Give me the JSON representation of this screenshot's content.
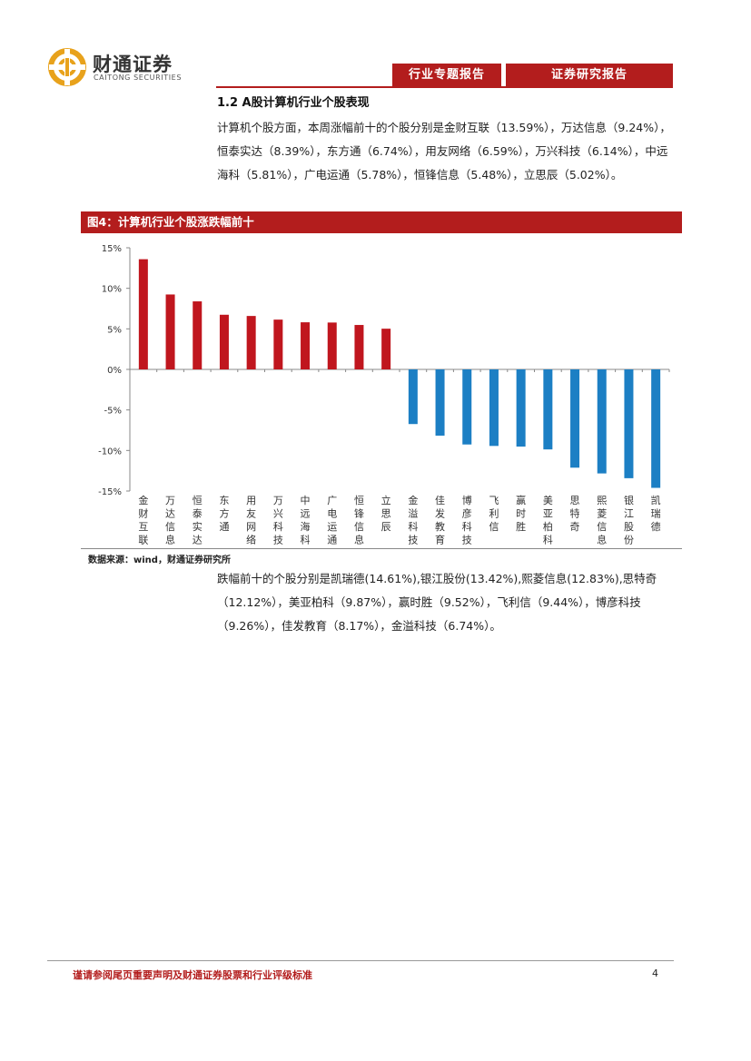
{
  "header": {
    "logo_cn": "财通证券",
    "logo_en": "CAITONG SECURITIES",
    "tab_industry": "行业专题报告",
    "tab_research": "证券研究报告",
    "brand_color": "#b31d1d"
  },
  "section": {
    "title": "1.2 A股计算机行业个股表现",
    "para1": "计算机个股方面，本周涨幅前十的个股分别是金财互联（13.59%），万达信息（9.24%），恒泰实达（8.39%），东方通（6.74%），用友网络（6.59%），万兴科技（6.14%），中远海科（5.81%），广电运通（5.78%），恒锋信息（5.48%），立思辰（5.02%）。",
    "para2": "跌幅前十的个股分别是凯瑞德(14.61%),银江股份(13.42%),熙菱信息(12.83%),思特奇（12.12%），美亚柏科（9.87%），赢时胜（9.52%），飞利信（9.44%），博彦科技（9.26%），佳发教育（8.17%），金溢科技（6.74%）。"
  },
  "figure": {
    "title": "图4：计算机行业个股涨跌幅前十",
    "source": "数据来源：wind，财通证券研究所"
  },
  "chart_data": {
    "type": "bar",
    "title": "",
    "xlabel": "",
    "ylabel": "",
    "ylim": [
      -15,
      15
    ],
    "yticks": [
      15,
      10,
      5,
      0,
      -5,
      -10,
      -15
    ],
    "ytick_labels": [
      "15%",
      "10%",
      "5%",
      "0%",
      "-5%",
      "-10%",
      "-15%"
    ],
    "categories": [
      "金财互联",
      "万达信息",
      "恒泰实达",
      "东方通",
      "用友网络",
      "万兴科技",
      "中远海科",
      "广电运通",
      "恒锋信息",
      "立思辰",
      "金溢科技",
      "佳发教育",
      "博彦科技",
      "飞利信",
      "赢时胜",
      "美亚柏科",
      "思特奇",
      "熙菱信息",
      "银江股份",
      "凯瑞德"
    ],
    "values": [
      13.59,
      9.24,
      8.39,
      6.74,
      6.59,
      6.14,
      5.81,
      5.78,
      5.48,
      5.02,
      -6.74,
      -8.17,
      -9.26,
      -9.44,
      -9.52,
      -9.87,
      -12.12,
      -12.83,
      -13.42,
      -14.61
    ],
    "positive_color": "#c0161e",
    "negative_color": "#1c7fc4",
    "grid": false,
    "legend": "none"
  },
  "footer": {
    "disclaimer": "谨请参阅尾页重要声明及财通证券股票和行业评级标准",
    "page": "4"
  }
}
